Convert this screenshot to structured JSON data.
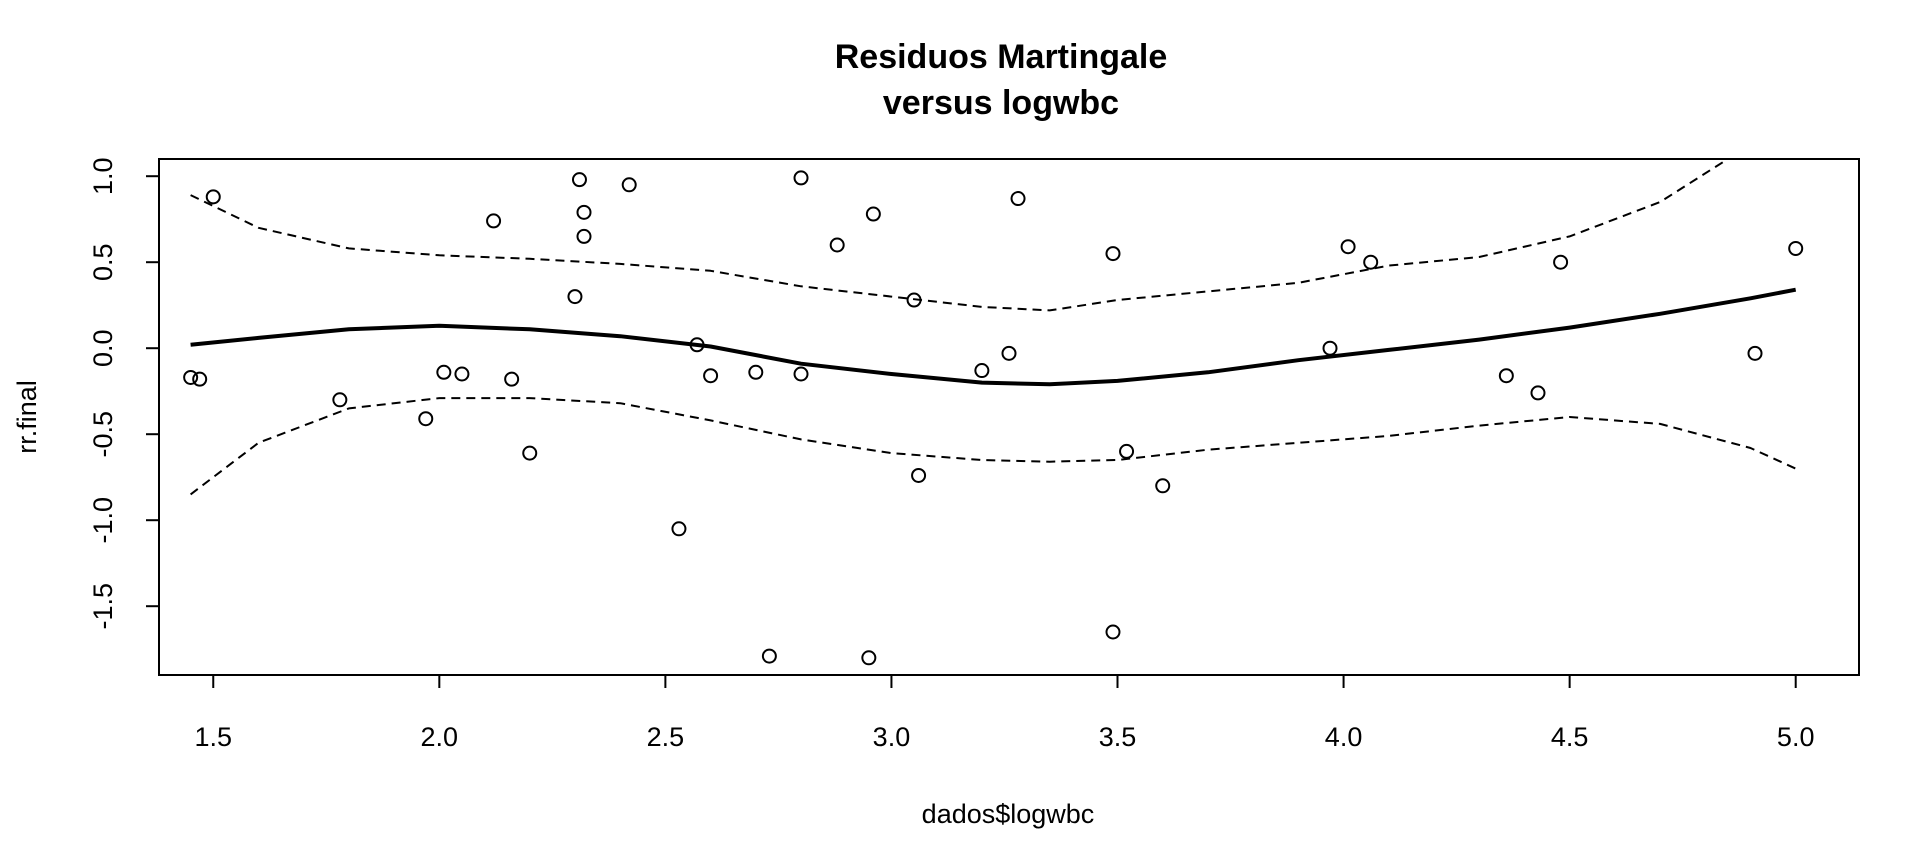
{
  "chart_data": {
    "type": "scatter",
    "title_line1": "Residuos Martingale",
    "title_line2": "versus logwbc",
    "xlabel": "dados$logwbc",
    "ylabel": "rr.final",
    "xlim": [
      1.38,
      5.14
    ],
    "ylim": [
      -1.9,
      1.1
    ],
    "x_ticks": [
      1.5,
      2.0,
      2.5,
      3.0,
      3.5,
      4.0,
      4.5,
      5.0
    ],
    "x_tick_labels": [
      "1.5",
      "2.0",
      "2.5",
      "3.0",
      "3.5",
      "4.0",
      "4.5",
      "5.0"
    ],
    "y_ticks": [
      -1.5,
      -1.0,
      -0.5,
      0.0,
      0.5,
      1.0
    ],
    "y_tick_labels": [
      "-1.5",
      "-1.0",
      "-0.5",
      "0.0",
      "0.5",
      "1.0"
    ],
    "grid": false,
    "points": [
      [
        1.45,
        -0.17
      ],
      [
        1.47,
        -0.18
      ],
      [
        1.5,
        0.88
      ],
      [
        1.78,
        -0.3
      ],
      [
        1.97,
        -0.41
      ],
      [
        2.01,
        -0.14
      ],
      [
        2.05,
        -0.15
      ],
      [
        2.12,
        0.74
      ],
      [
        2.16,
        -0.18
      ],
      [
        2.2,
        -0.61
      ],
      [
        2.3,
        0.3
      ],
      [
        2.31,
        0.98
      ],
      [
        2.32,
        0.79
      ],
      [
        2.32,
        0.65
      ],
      [
        2.42,
        0.95
      ],
      [
        2.53,
        -1.05
      ],
      [
        2.57,
        0.02
      ],
      [
        2.6,
        -0.16
      ],
      [
        2.7,
        -0.14
      ],
      [
        2.73,
        -1.79
      ],
      [
        2.8,
        0.99
      ],
      [
        2.8,
        -0.15
      ],
      [
        2.88,
        0.6
      ],
      [
        2.95,
        -1.8
      ],
      [
        2.96,
        0.78
      ],
      [
        3.05,
        0.28
      ],
      [
        3.06,
        -0.74
      ],
      [
        3.2,
        -0.13
      ],
      [
        3.26,
        -0.03
      ],
      [
        3.28,
        0.87
      ],
      [
        3.49,
        0.55
      ],
      [
        3.49,
        -1.65
      ],
      [
        3.52,
        -0.6
      ],
      [
        3.6,
        -0.8
      ],
      [
        3.97,
        0.0
      ],
      [
        4.01,
        0.59
      ],
      [
        4.06,
        0.5
      ],
      [
        4.36,
        -0.16
      ],
      [
        4.43,
        -0.26
      ],
      [
        4.48,
        0.5
      ],
      [
        4.91,
        -0.03
      ],
      [
        5.0,
        0.58
      ]
    ],
    "series": [
      {
        "role": "smooth",
        "style": "solid",
        "x": [
          1.45,
          1.6,
          1.8,
          2.0,
          2.2,
          2.4,
          2.6,
          2.8,
          3.0,
          3.2,
          3.35,
          3.5,
          3.7,
          3.9,
          4.1,
          4.3,
          4.5,
          4.7,
          4.9,
          5.0
        ],
        "y": [
          0.02,
          0.06,
          0.11,
          0.13,
          0.11,
          0.07,
          0.01,
          -0.09,
          -0.15,
          -0.2,
          -0.21,
          -0.19,
          -0.14,
          -0.07,
          -0.01,
          0.05,
          0.12,
          0.2,
          0.29,
          0.34
        ]
      },
      {
        "role": "upper-band",
        "style": "dashed",
        "x": [
          1.45,
          1.6,
          1.8,
          2.0,
          2.2,
          2.4,
          2.6,
          2.8,
          3.0,
          3.2,
          3.35,
          3.5,
          3.7,
          3.9,
          4.1,
          4.3,
          4.5,
          4.7,
          4.85
        ],
        "y": [
          0.89,
          0.7,
          0.58,
          0.54,
          0.52,
          0.49,
          0.45,
          0.36,
          0.3,
          0.24,
          0.22,
          0.28,
          0.33,
          0.38,
          0.48,
          0.53,
          0.65,
          0.85,
          1.1
        ]
      },
      {
        "role": "lower-band",
        "style": "dashed",
        "x": [
          1.45,
          1.6,
          1.8,
          2.0,
          2.2,
          2.4,
          2.6,
          2.8,
          3.0,
          3.2,
          3.35,
          3.5,
          3.7,
          3.9,
          4.1,
          4.3,
          4.5,
          4.7,
          4.9,
          5.0
        ],
        "y": [
          -0.85,
          -0.55,
          -0.35,
          -0.29,
          -0.29,
          -0.32,
          -0.42,
          -0.53,
          -0.61,
          -0.65,
          -0.66,
          -0.65,
          -0.59,
          -0.55,
          -0.51,
          -0.45,
          -0.4,
          -0.44,
          -0.58,
          -0.7
        ]
      }
    ]
  }
}
